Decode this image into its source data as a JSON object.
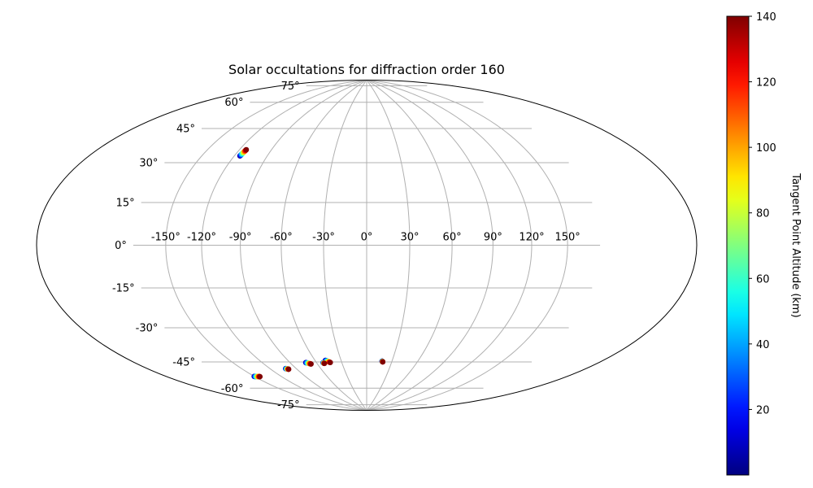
{
  "chart_data": {
    "type": "scatter",
    "projection": "hammer",
    "title": "Solar occultations for diffraction order 160",
    "grid": true,
    "lon_ticks": [
      "-150°",
      "-120°",
      "-90°",
      "-60°",
      "-30°",
      "0°",
      "30°",
      "60°",
      "90°",
      "120°",
      "150°"
    ],
    "lon_tick_values": [
      -150,
      -120,
      -90,
      -60,
      -30,
      0,
      30,
      60,
      90,
      120,
      150
    ],
    "lat_ticks": [
      "-75°",
      "-60°",
      "-45°",
      "-30°",
      "-15°",
      "0°",
      "15°",
      "30°",
      "45°",
      "60°",
      "75°"
    ],
    "lat_tick_values": [
      -75,
      -60,
      -45,
      -30,
      -15,
      0,
      15,
      30,
      45,
      60,
      75
    ],
    "colorbar": {
      "label": "Tangent Point Altitude (km)",
      "colormap": "jet",
      "range": [
        0,
        140
      ],
      "ticks": [
        "20",
        "40",
        "60",
        "80",
        "100",
        "120",
        "140"
      ],
      "tick_values": [
        20,
        40,
        60,
        80,
        100,
        120,
        140
      ]
    },
    "series": [
      {
        "lon_start": -150.3,
        "lat_start": -57.9,
        "lon_end": -144.5,
        "lat_end": -58.9,
        "alt_range": [
          0,
          140
        ]
      },
      {
        "lon_start": -102.3,
        "lat_start": -59.2,
        "lon_end": -99.7,
        "lat_end": -59.8,
        "alt_range": [
          0,
          140
        ]
      },
      {
        "lon_start": -72.3,
        "lat_start": -58.1,
        "lon_end": -67.5,
        "lat_end": -59.2,
        "alt_range": [
          0,
          140
        ]
      },
      {
        "lon_start": -48.1,
        "lat_start": -58.1,
        "lon_end": -43.7,
        "lat_end": -59.5,
        "alt_range": [
          0,
          140
        ]
      },
      {
        "lon_start": -52.4,
        "lat_start": -59.3,
        "lon_end": -51.3,
        "lat_end": -59.7,
        "alt_range": [
          0,
          140
        ]
      },
      {
        "lon_start": 18.3,
        "lat_start": -59.4,
        "lon_end": 19.3,
        "lat_end": -59.8,
        "alt_range": [
          0,
          140
        ]
      },
      {
        "lon_start": -114.8,
        "lat_start": 40.0,
        "lon_end": -113.6,
        "lat_end": 43.2,
        "alt_range": [
          0,
          140
        ]
      }
    ]
  }
}
